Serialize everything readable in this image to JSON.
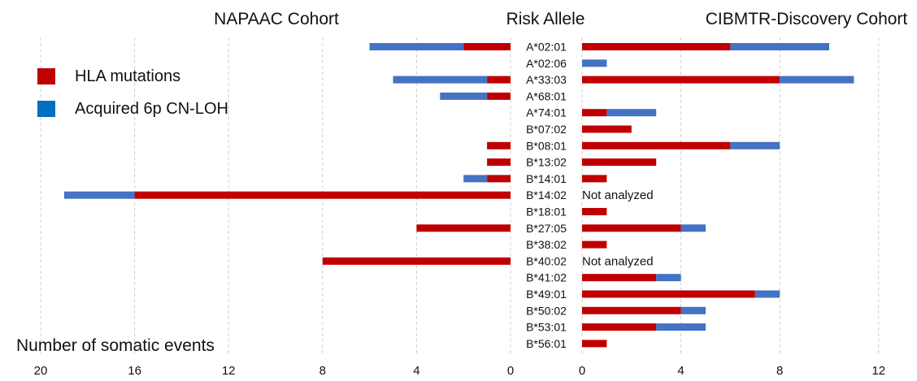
{
  "chart_data": {
    "type": "bar",
    "orientation": "horizontal",
    "layout": "butterfly",
    "center_title": "Risk Allele",
    "x_axis_label": "Number of somatic events",
    "grid": true,
    "legend_placement": "top-left",
    "series_names": [
      "HLA mutations",
      "Acquired 6p CN-LOH"
    ],
    "colors": {
      "hla_mutations": "#c00000",
      "cn_loh": "#4472c4",
      "grid": "#d0d0d0"
    },
    "categories": [
      "A*02:01",
      "A*02:06",
      "A*33:03",
      "A*68:01",
      "A*74:01",
      "B*07:02",
      "B*08:01",
      "B*13:02",
      "B*14:01",
      "B*14:02",
      "B*18:01",
      "B*27:05",
      "B*38:02",
      "B*40:02",
      "B*41:02",
      "B*49:01",
      "B*50:02",
      "B*53:01",
      "B*56:01"
    ],
    "left_panel": {
      "title": "NAPAAC Cohort",
      "xlim": [
        0,
        20
      ],
      "ticks": [
        "20",
        "16",
        "12",
        "8",
        "4",
        "0"
      ],
      "tick_values": [
        20,
        16,
        12,
        8,
        4,
        0
      ],
      "hla_mutations": [
        2,
        0,
        1,
        1,
        0,
        0,
        1,
        1,
        1,
        16,
        0,
        4,
        0,
        8,
        0,
        0,
        0,
        0,
        0
      ],
      "cn_loh": [
        4,
        0,
        4,
        2,
        0,
        0,
        0,
        0,
        1,
        3,
        0,
        0,
        0,
        0,
        0,
        0,
        0,
        0,
        0
      ]
    },
    "right_panel": {
      "title": "CIBMTR-Discovery Cohort",
      "xlim": [
        0,
        14
      ],
      "ticks": [
        "0",
        "4",
        "8",
        "12"
      ],
      "tick_values": [
        0,
        4,
        8,
        12
      ],
      "hla_mutations": [
        6,
        0,
        8,
        0,
        1,
        2,
        6,
        3,
        1,
        0,
        1,
        4,
        1,
        0,
        3,
        7,
        4,
        3,
        1
      ],
      "cn_loh": [
        4,
        1,
        3,
        0,
        2,
        0,
        2,
        0,
        0,
        0,
        0,
        1,
        0,
        0,
        1,
        1,
        1,
        2,
        0
      ],
      "not_analyzed_label": "Not analyzed",
      "not_analyzed": [
        "B*14:02",
        "B*40:02"
      ]
    }
  }
}
